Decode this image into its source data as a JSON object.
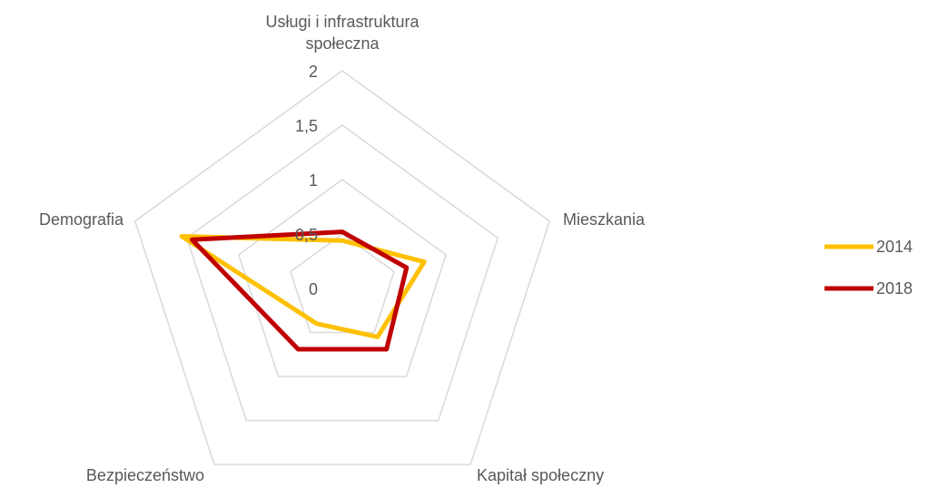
{
  "chart_data": {
    "type": "radar",
    "categories": [
      "Usługi i infrastruktura społeczna",
      "Mieszkania",
      "Kapitał społeczny",
      "Bezpieczeństwo",
      "Demografia"
    ],
    "series": [
      {
        "name": "2014",
        "color": "#ffc000",
        "values": [
          0.44,
          0.79,
          0.55,
          0.4,
          1.55
        ]
      },
      {
        "name": "2018",
        "color": "#c00000",
        "values": [
          0.52,
          0.62,
          0.69,
          0.69,
          1.45
        ]
      }
    ],
    "ylim": [
      0,
      2
    ],
    "yticks": [
      0,
      {
        "value": 0.5,
        "label": "0,5"
      },
      1,
      {
        "value": 1.5,
        "label": "1,5"
      },
      2
    ],
    "grid": true,
    "legend": "right"
  }
}
